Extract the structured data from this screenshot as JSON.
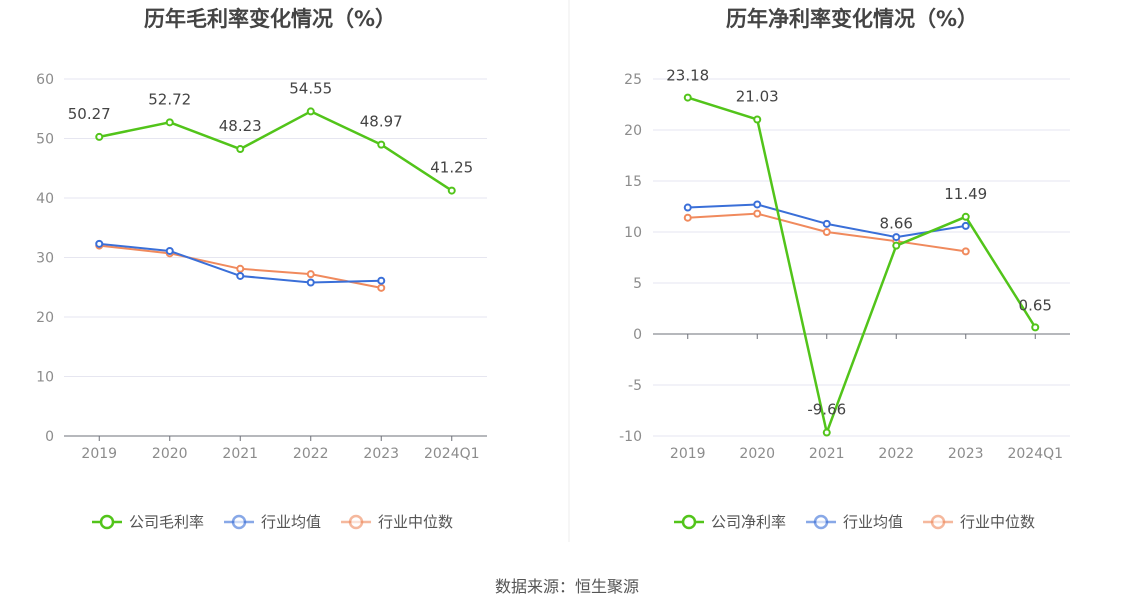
{
  "chart_data": [
    {
      "type": "line",
      "title": "历年毛利率变化情况（%）",
      "categories": [
        "2019",
        "2020",
        "2021",
        "2022",
        "2023",
        "2024Q1"
      ],
      "ylim": [
        0,
        60
      ],
      "yticks": [
        0,
        10,
        20,
        30,
        40,
        50,
        60
      ],
      "grid": true,
      "legend": "bottom",
      "series": [
        {
          "name": "公司毛利率",
          "color": "#52c41a",
          "values": [
            50.27,
            52.72,
            48.23,
            54.55,
            48.97,
            41.25
          ],
          "labels": [
            "50.27",
            "52.72",
            "48.23",
            "54.55",
            "48.97",
            "41.25"
          ]
        },
        {
          "name": "行业均值",
          "color": "#3a6fd8",
          "values": [
            32.3,
            31.1,
            26.9,
            25.8,
            26.1,
            null
          ]
        },
        {
          "name": "行业中位数",
          "color": "#f08a5d",
          "values": [
            32.0,
            30.7,
            28.1,
            27.2,
            24.9,
            null
          ]
        }
      ]
    },
    {
      "type": "line",
      "title": "历年净利率变化情况（%）",
      "categories": [
        "2019",
        "2020",
        "2021",
        "2022",
        "2023",
        "2024Q1"
      ],
      "ylim": [
        -10,
        25
      ],
      "yticks": [
        -10,
        -5,
        0,
        5,
        10,
        15,
        20,
        25
      ],
      "grid": true,
      "legend": "bottom",
      "series": [
        {
          "name": "公司净利率",
          "color": "#52c41a",
          "values": [
            23.18,
            21.03,
            -9.66,
            8.66,
            11.49,
            0.65
          ],
          "labels": [
            "23.18",
            "21.03",
            "-9.66",
            "8.66",
            "11.49",
            "0.65"
          ]
        },
        {
          "name": "行业均值",
          "color": "#3a6fd8",
          "values": [
            12.4,
            12.7,
            10.8,
            9.5,
            10.6,
            null
          ]
        },
        {
          "name": "行业中位数",
          "color": "#f08a5d",
          "values": [
            11.4,
            11.8,
            10.0,
            9.1,
            8.1,
            null
          ]
        }
      ]
    }
  ],
  "source": "数据来源：恒生聚源"
}
